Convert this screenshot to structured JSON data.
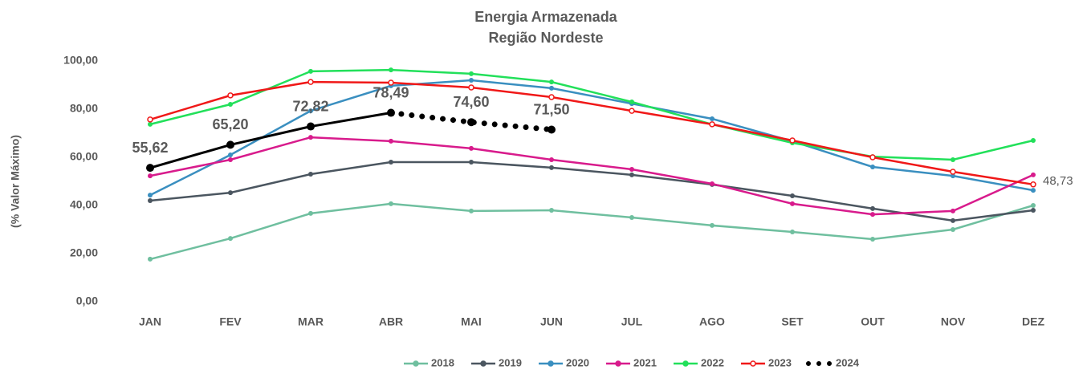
{
  "chart_data": {
    "type": "line",
    "title": "Energia Armazenada",
    "subtitle": "Região Nordeste",
    "y_label": "(% Valor Máximo)",
    "categories": [
      "JAN",
      "FEV",
      "MAR",
      "ABR",
      "MAI",
      "JUN",
      "JUL",
      "AGO",
      "SET",
      "OUT",
      "NOV",
      "DEZ"
    ],
    "ylim": [
      0,
      100
    ],
    "yticks": [
      {
        "value": 0,
        "label": "0,00"
      },
      {
        "value": 20,
        "label": "20,00"
      },
      {
        "value": 40,
        "label": "40,00"
      },
      {
        "value": 60,
        "label": "60,00"
      },
      {
        "value": 80,
        "label": "80,00"
      },
      {
        "value": 100,
        "label": "100,00"
      }
    ],
    "grid": false,
    "legend": "bottom",
    "series": [
      {
        "name": "2018",
        "color": "#6fbf9f",
        "values": [
          17.7,
          26.3,
          36.7,
          40.7,
          37.7,
          38,
          35,
          31.7,
          29,
          26,
          30,
          40
        ]
      },
      {
        "name": "2019",
        "color": "#4b5660",
        "values": [
          42,
          45.3,
          53,
          58,
          58,
          55.7,
          52.7,
          48.7,
          44,
          38.7,
          33.7,
          38
        ]
      },
      {
        "name": "2020",
        "color": "#3a8fc0",
        "values": [
          44.3,
          61,
          79.3,
          89.7,
          92,
          88.7,
          82.3,
          76,
          66.7,
          56,
          52.3,
          46.3
        ]
      },
      {
        "name": "2021",
        "color": "#d81b8c",
        "values": [
          52.3,
          59,
          68.3,
          66.7,
          63.7,
          59,
          55,
          49,
          40.7,
          36.3,
          37.7,
          52.7
        ]
      },
      {
        "name": "2022",
        "color": "#22e05a",
        "values": [
          73.7,
          82,
          95.7,
          96.3,
          94.7,
          91.3,
          83,
          73.7,
          66,
          60.3,
          59,
          67
        ]
      },
      {
        "name": "2023",
        "color": "#f01818",
        "hollow_markers": true,
        "values": [
          75.7,
          85.7,
          91.3,
          91,
          89,
          85,
          79.3,
          73.7,
          67,
          60,
          54,
          48.73
        ],
        "value_labels": [
          null,
          null,
          null,
          null,
          null,
          null,
          null,
          null,
          null,
          null,
          null,
          "48,73"
        ]
      },
      {
        "name": "2024",
        "color": "#000000",
        "line_style": "dotted",
        "solid_until": 3,
        "values": [
          55.62,
          65.2,
          72.82,
          78.49,
          74.6,
          71.5,
          null,
          null,
          null,
          null,
          null,
          null
        ],
        "value_labels": [
          "55,62",
          "65,20",
          "72,82",
          "78,49",
          "74,60",
          "71,50",
          null,
          null,
          null,
          null,
          null,
          null
        ]
      }
    ]
  }
}
